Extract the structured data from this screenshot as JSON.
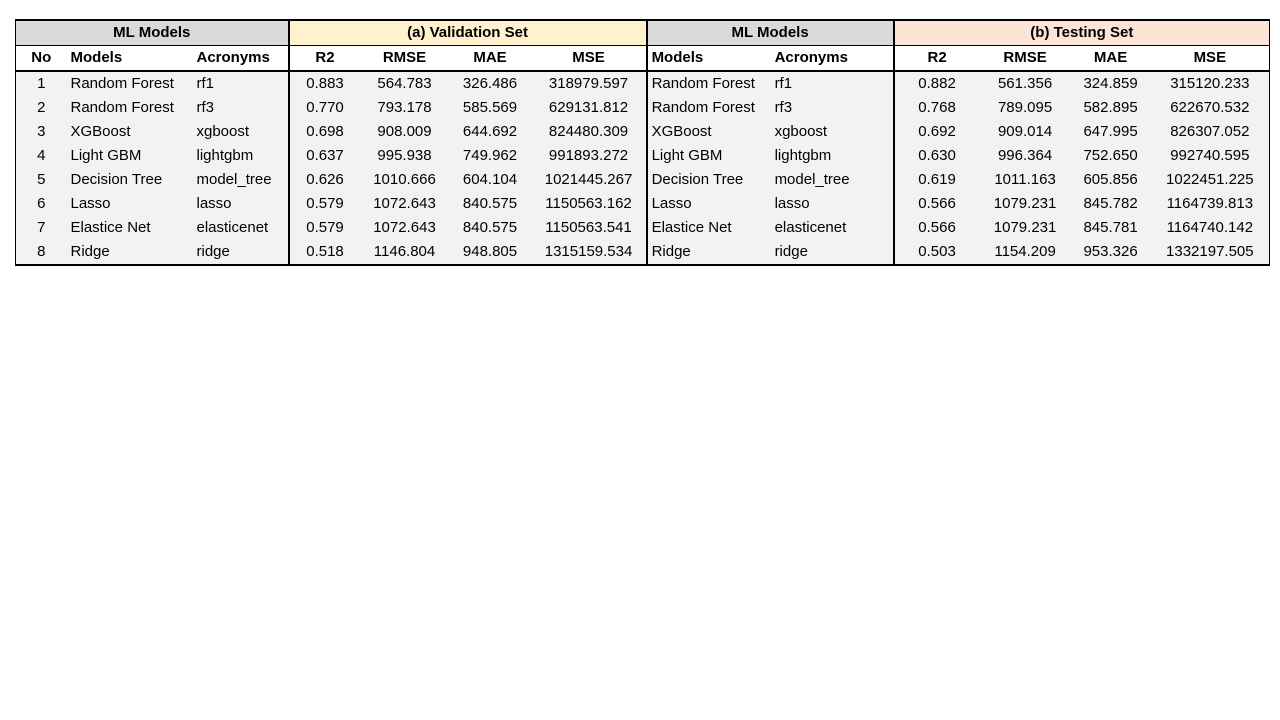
{
  "header": {
    "group_ml_models_left": "ML Models",
    "group_validation": "(a) Validation Set",
    "group_ml_models_right": "ML Models",
    "group_testing": "(b) Testing Set"
  },
  "columns": {
    "no": "No",
    "models": "Models",
    "acronyms": "Acronyms",
    "r2": "R2",
    "rmse": "RMSE",
    "mae": "MAE",
    "mse": "MSE"
  },
  "rows": [
    {
      "no": "1",
      "model": "Random Forest",
      "acronym": "rf1",
      "val": {
        "r2": "0.883",
        "rmse": "564.783",
        "mae": "326.486",
        "mse": "318979.597"
      },
      "test": {
        "r2": "0.882",
        "rmse": "561.356",
        "mae": "324.859",
        "mse": "315120.233"
      }
    },
    {
      "no": "2",
      "model": "Random Forest",
      "acronym": "rf3",
      "val": {
        "r2": "0.770",
        "rmse": "793.178",
        "mae": "585.569",
        "mse": "629131.812"
      },
      "test": {
        "r2": "0.768",
        "rmse": "789.095",
        "mae": "582.895",
        "mse": "622670.532"
      }
    },
    {
      "no": "3",
      "model": "XGBoost",
      "acronym": "xgboost",
      "val": {
        "r2": "0.698",
        "rmse": "908.009",
        "mae": "644.692",
        "mse": "824480.309"
      },
      "test": {
        "r2": "0.692",
        "rmse": "909.014",
        "mae": "647.995",
        "mse": "826307.052"
      }
    },
    {
      "no": "4",
      "model": "Light GBM",
      "acronym": "lightgbm",
      "val": {
        "r2": "0.637",
        "rmse": "995.938",
        "mae": "749.962",
        "mse": "991893.272"
      },
      "test": {
        "r2": "0.630",
        "rmse": "996.364",
        "mae": "752.650",
        "mse": "992740.595"
      }
    },
    {
      "no": "5",
      "model": "Decision Tree",
      "acronym": "model_tree",
      "val": {
        "r2": "0.626",
        "rmse": "1010.666",
        "mae": "604.104",
        "mse": "1021445.267"
      },
      "test": {
        "r2": "0.619",
        "rmse": "1011.163",
        "mae": "605.856",
        "mse": "1022451.225"
      }
    },
    {
      "no": "6",
      "model": "Lasso",
      "acronym": "lasso",
      "val": {
        "r2": "0.579",
        "rmse": "1072.643",
        "mae": "840.575",
        "mse": "1150563.162"
      },
      "test": {
        "r2": "0.566",
        "rmse": "1079.231",
        "mae": "845.782",
        "mse": "1164739.813"
      }
    },
    {
      "no": "7",
      "model": "Elastice Net",
      "acronym": "elasticenet",
      "val": {
        "r2": "0.579",
        "rmse": "1072.643",
        "mae": "840.575",
        "mse": "1150563.541"
      },
      "test": {
        "r2": "0.566",
        "rmse": "1079.231",
        "mae": "845.781",
        "mse": "1164740.142"
      }
    },
    {
      "no": "8",
      "model": "Ridge",
      "acronym": "ridge",
      "val": {
        "r2": "0.518",
        "rmse": "1146.804",
        "mae": "948.805",
        "mse": "1315159.534"
      },
      "test": {
        "r2": "0.503",
        "rmse": "1154.209",
        "mae": "953.326",
        "mse": "1332197.505"
      }
    }
  ],
  "colors": {
    "header_gray": "#d9d9d9",
    "validation_yellow": "#fff2cc",
    "testing_pink": "#fce4d6",
    "row_background": "#f2f2f2"
  }
}
